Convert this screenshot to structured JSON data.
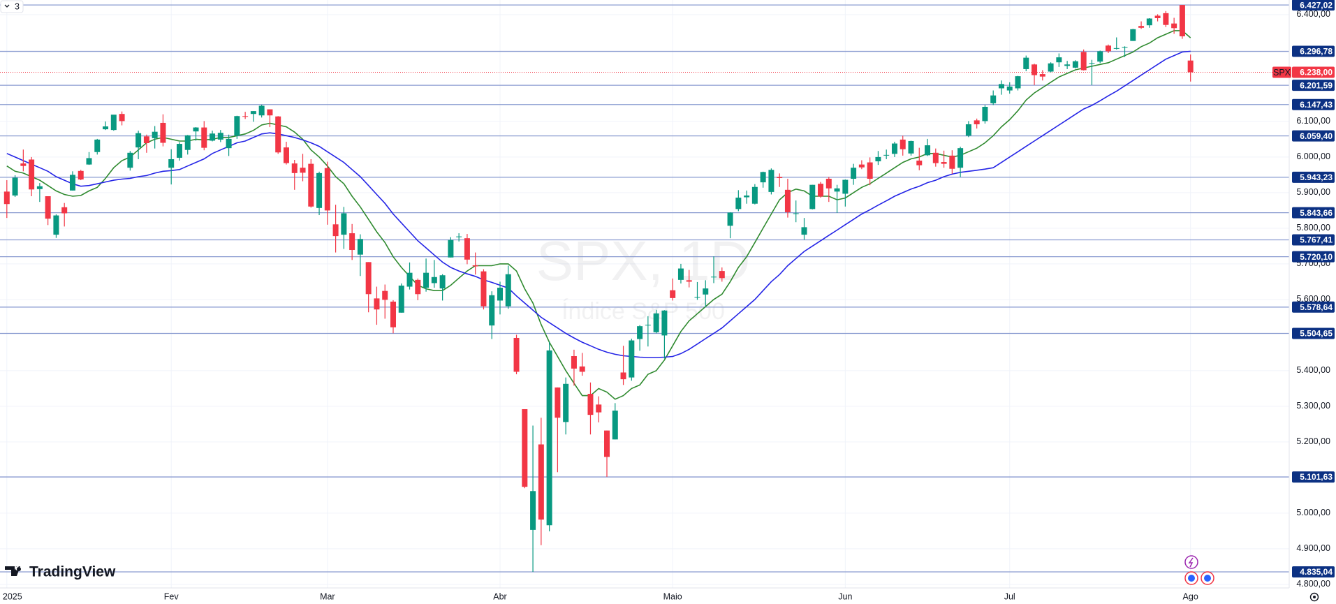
{
  "chart_data": {
    "type": "candlestick",
    "indicator_count": 3,
    "watermark_title": "SPX, 1D",
    "watermark_subtitle": "Índice S&P 500",
    "brand": "TradingView",
    "symbol": "SPX",
    "up_color": "#089981",
    "down_color": "#f23645",
    "level_color": "#8a9bd0",
    "label_color": "#0c3183",
    "grid": true,
    "ylim": [
      4790,
      6441
    ],
    "yticks": [
      {
        "value": 6400,
        "label": "6.400,00"
      },
      {
        "value": 6100,
        "label": "6.100,00"
      },
      {
        "value": 6000,
        "label": "6.000,00"
      },
      {
        "value": 5900,
        "label": "5.900,00"
      },
      {
        "value": 5800,
        "label": "5.800,00"
      },
      {
        "value": 5700,
        "label": "5.700,00"
      },
      {
        "value": 5600,
        "label": "5.600,00"
      },
      {
        "value": 5400,
        "label": "5.400,00"
      },
      {
        "value": 5300,
        "label": "5.300,00"
      },
      {
        "value": 5200,
        "label": "5.200,00"
      },
      {
        "value": 5000,
        "label": "5.000,00"
      },
      {
        "value": 4900,
        "label": "4.900,00"
      },
      {
        "value": 4800,
        "label": "4.800,00"
      }
    ],
    "levels": [
      {
        "value": 6427.02,
        "label": "6.427,02"
      },
      {
        "value": 6296.78,
        "label": "6.296,78"
      },
      {
        "value": 6201.59,
        "label": "6.201,59"
      },
      {
        "value": 6147.43,
        "label": "6.147,43"
      },
      {
        "value": 6059.4,
        "label": "6.059,40"
      },
      {
        "value": 5943.23,
        "label": "5.943,23"
      },
      {
        "value": 5843.66,
        "label": "5.843,66"
      },
      {
        "value": 5767.41,
        "label": "5.767,41"
      },
      {
        "value": 5720.1,
        "label": "5.720,10"
      },
      {
        "value": 5578.64,
        "label": "5.578,64"
      },
      {
        "value": 5504.65,
        "label": "5.504,65"
      },
      {
        "value": 5101.63,
        "label": "5.101,63"
      },
      {
        "value": 4835.04,
        "label": "4.835,04"
      }
    ],
    "last_price": {
      "value": 6238.0,
      "label": "6.238,00"
    },
    "categories": [
      "2025",
      null,
      null,
      null,
      null,
      null,
      null,
      null,
      null,
      null,
      null,
      null,
      null,
      null,
      null,
      null,
      null,
      null,
      null,
      null,
      "Fev",
      null,
      null,
      null,
      null,
      null,
      null,
      null,
      null,
      null,
      null,
      null,
      null,
      null,
      null,
      null,
      null,
      null,
      null,
      "Mar",
      null,
      null,
      null,
      null,
      null,
      null,
      null,
      null,
      null,
      null,
      null,
      null,
      null,
      null,
      null,
      null,
      null,
      null,
      null,
      null,
      "Abr",
      null,
      null,
      null,
      null,
      null,
      null,
      null,
      null,
      null,
      null,
      null,
      null,
      null,
      null,
      null,
      null,
      null,
      null,
      null,
      null,
      "Maio",
      null,
      null,
      null,
      null,
      null,
      null,
      null,
      null,
      null,
      null,
      null,
      null,
      null,
      null,
      null,
      null,
      null,
      null,
      null,
      null,
      "Jun",
      null,
      null,
      null,
      null,
      null,
      null,
      null,
      null,
      null,
      null,
      null,
      null,
      null,
      null,
      null,
      null,
      null,
      null,
      null,
      "Jul",
      null,
      null,
      null,
      null,
      null,
      null,
      null,
      null,
      null,
      null,
      null,
      null,
      null,
      null,
      null,
      null,
      null,
      null,
      null,
      null,
      null,
      "Ago"
    ],
    "ohlc": [
      [
        5903,
        5935,
        5829,
        5868
      ],
      [
        5892,
        5949,
        5888,
        5942
      ],
      [
        5982,
        6021,
        5960,
        5975
      ],
      [
        5993,
        6000,
        5890,
        5909
      ],
      [
        5910,
        5927,
        5874,
        5918
      ],
      [
        5890,
        5890,
        5809,
        5827
      ],
      [
        5782,
        5839,
        5773,
        5836
      ],
      [
        5859,
        5871,
        5805,
        5842
      ],
      [
        5906,
        5960,
        5906,
        5950
      ],
      [
        5961,
        5964,
        5935,
        5937
      ],
      [
        5979,
        6014,
        5978,
        5997
      ],
      [
        6014,
        6051,
        6007,
        6049
      ],
      [
        6078,
        6100,
        6076,
        6086
      ],
      [
        6076,
        6118,
        6074,
        6119
      ],
      [
        6121,
        6128,
        6089,
        6101
      ],
      [
        5970,
        6017,
        5962,
        6012
      ],
      [
        6027,
        6074,
        5994,
        6067
      ],
      [
        6058,
        6063,
        6012,
        6039
      ],
      [
        6053,
        6087,
        6024,
        6071
      ],
      [
        6096,
        6120,
        6030,
        6040
      ],
      [
        5970,
        6022,
        5923,
        5994
      ],
      [
        5998,
        6042,
        5990,
        6037
      ],
      [
        6020,
        6062,
        6007,
        6061
      ],
      [
        6072,
        6084,
        6046,
        6083
      ],
      [
        6083,
        6101,
        6019,
        6026
      ],
      [
        6046,
        6074,
        6044,
        6066
      ],
      [
        6049,
        6076,
        6042,
        6068
      ],
      [
        6025,
        6063,
        6003,
        6051
      ],
      [
        6060,
        6116,
        6051,
        6115
      ],
      [
        6115,
        6127,
        6107,
        6114
      ],
      [
        6121,
        6129,
        6099,
        6129
      ],
      [
        6117,
        6147,
        6111,
        6144
      ],
      [
        6134,
        6134,
        6084,
        6117
      ],
      [
        6114,
        6115,
        6009,
        6013
      ],
      [
        6027,
        6043,
        5979,
        5983
      ],
      [
        5982,
        5992,
        5908,
        5955
      ],
      [
        5970,
        6009,
        5932,
        5956
      ],
      [
        5981,
        5994,
        5858,
        5861
      ],
      [
        5857,
        5959,
        5837,
        5955
      ],
      [
        5969,
        5987,
        5810,
        5850
      ],
      [
        5811,
        5866,
        5732,
        5778
      ],
      [
        5782,
        5860,
        5742,
        5842
      ],
      [
        5786,
        5812,
        5711,
        5739
      ],
      [
        5726,
        5783,
        5666,
        5770
      ],
      [
        5705,
        5705,
        5564,
        5615
      ],
      [
        5603,
        5636,
        5529,
        5572
      ],
      [
        5624,
        5642,
        5546,
        5599
      ],
      [
        5594,
        5598,
        5505,
        5522
      ],
      [
        5563,
        5645,
        5563,
        5639
      ],
      [
        5636,
        5704,
        5628,
        5675
      ],
      [
        5655,
        5659,
        5598,
        5615
      ],
      [
        5633,
        5715,
        5622,
        5675
      ],
      [
        5646,
        5711,
        5633,
        5663
      ],
      [
        5631,
        5671,
        5597,
        5668
      ],
      [
        5718,
        5775,
        5718,
        5767
      ],
      [
        5775,
        5786,
        5763,
        5777
      ],
      [
        5772,
        5784,
        5699,
        5712
      ],
      [
        5696,
        5732,
        5670,
        5693
      ],
      [
        5679,
        5685,
        5572,
        5581
      ],
      [
        5527,
        5623,
        5489,
        5612
      ],
      [
        5597,
        5650,
        5558,
        5633
      ],
      [
        5581,
        5695,
        5574,
        5671
      ],
      [
        5492,
        5501,
        5390,
        5397
      ],
      [
        5292,
        5292,
        5070,
        5074
      ],
      [
        4953,
        5246,
        4835,
        5062
      ],
      [
        5193,
        5268,
        4910,
        4982
      ],
      [
        4966,
        5482,
        4949,
        5457
      ],
      [
        5353,
        5353,
        5115,
        5268
      ],
      [
        5256,
        5381,
        5221,
        5363
      ],
      [
        5441,
        5459,
        5358,
        5406
      ],
      [
        5412,
        5450,
        5386,
        5397
      ],
      [
        5335,
        5367,
        5221,
        5276
      ],
      [
        5305,
        5328,
        5255,
        5283
      ],
      [
        5232,
        5232,
        5102,
        5158
      ],
      [
        5207,
        5309,
        5207,
        5288
      ],
      [
        5395,
        5470,
        5360,
        5376
      ],
      [
        5381,
        5490,
        5372,
        5485
      ],
      [
        5489,
        5528,
        5456,
        5525
      ],
      [
        5529,
        5553,
        5468,
        5529
      ],
      [
        5508,
        5571,
        5505,
        5561
      ],
      [
        5499,
        5570,
        5434,
        5569
      ],
      [
        5626,
        5659,
        5597,
        5604
      ],
      [
        5655,
        5700,
        5645,
        5687
      ],
      [
        5654,
        5683,
        5634,
        5650
      ],
      [
        5607,
        5649,
        5599,
        5607
      ],
      [
        5614,
        5654,
        5579,
        5631
      ],
      [
        5663,
        5721,
        5646,
        5664
      ],
      [
        5680,
        5690,
        5650,
        5660
      ],
      [
        5807,
        5845,
        5772,
        5844
      ],
      [
        5854,
        5907,
        5848,
        5886
      ],
      [
        5887,
        5906,
        5869,
        5892
      ],
      [
        5869,
        5924,
        5867,
        5916
      ],
      [
        5929,
        5959,
        5914,
        5958
      ],
      [
        5902,
        5968,
        5895,
        5964
      ],
      [
        5944,
        5954,
        5916,
        5941
      ],
      [
        5908,
        5939,
        5830,
        5845
      ],
      [
        5841,
        5878,
        5817,
        5842
      ],
      [
        5782,
        5829,
        5768,
        5803
      ],
      [
        5854,
        5922,
        5853,
        5922
      ],
      [
        5925,
        5930,
        5886,
        5889
      ],
      [
        5939,
        5944,
        5874,
        5912
      ],
      [
        5903,
        5922,
        5843,
        5912
      ],
      [
        5897,
        5937,
        5861,
        5936
      ],
      [
        5939,
        5981,
        5922,
        5970
      ],
      [
        5979,
        5991,
        5966,
        5971
      ],
      [
        5985,
        5999,
        5921,
        5939
      ],
      [
        5988,
        6017,
        5978,
        6000
      ],
      [
        6005,
        6021,
        5994,
        6006
      ],
      [
        6009,
        6043,
        6000,
        6038
      ],
      [
        6049,
        6060,
        6004,
        6022
      ],
      [
        6010,
        6046,
        6004,
        6045
      ],
      [
        5990,
        6026,
        5963,
        5977
      ],
      [
        6005,
        6051,
        6003,
        6033
      ],
      [
        6012,
        6024,
        5973,
        5983
      ],
      [
        5986,
        6018,
        5970,
        5981
      ],
      [
        6004,
        6019,
        5953,
        5967
      ],
      [
        5970,
        6029,
        5944,
        6025
      ],
      [
        6060,
        6101,
        6056,
        6092
      ],
      [
        6103,
        6108,
        6080,
        6092
      ],
      [
        6101,
        6146,
        6094,
        6141
      ],
      [
        6151,
        6187,
        6146,
        6173
      ],
      [
        6193,
        6215,
        6175,
        6205
      ],
      [
        6187,
        6210,
        6178,
        6198
      ],
      [
        6193,
        6228,
        6187,
        6227
      ],
      [
        6247,
        6285,
        6241,
        6279
      ],
      [
        6260,
        6262,
        6202,
        6230
      ],
      [
        6233,
        6244,
        6215,
        6226
      ],
      [
        6240,
        6266,
        6238,
        6263
      ],
      [
        6266,
        6291,
        6253,
        6280
      ],
      [
        6256,
        6270,
        6247,
        6260
      ],
      [
        6251,
        6272,
        6249,
        6269
      ],
      [
        6295,
        6302,
        6243,
        6244
      ],
      [
        6262,
        6273,
        6202,
        6264
      ],
      [
        6268,
        6299,
        6264,
        6297
      ],
      [
        6313,
        6316,
        6292,
        6297
      ],
      [
        6304,
        6336,
        6302,
        6306
      ],
      [
        6307,
        6311,
        6281,
        6309
      ],
      [
        6326,
        6360,
        6326,
        6359
      ],
      [
        6368,
        6381,
        6360,
        6363
      ],
      [
        6370,
        6390,
        6363,
        6389
      ],
      [
        6397,
        6401,
        6381,
        6390
      ],
      [
        6404,
        6410,
        6365,
        6371
      ],
      [
        6375,
        6391,
        6346,
        6362
      ],
      [
        6427,
        6427,
        6332,
        6339
      ],
      [
        6271,
        6288,
        6212,
        6238
      ]
    ],
    "series": [
      {
        "color": "#2f8a2f",
        "values": [
          5975,
          5960,
          5955,
          5945,
          5935,
          5920,
          5905,
          5895,
          5890,
          5892,
          5905,
          5915,
          5940,
          5970,
          5990,
          6000,
          6020,
          6040,
          6050,
          6055,
          6050,
          6045,
          6045,
          6050,
          6048,
          6050,
          6055,
          6055,
          6060,
          6065,
          6075,
          6090,
          6095,
          6090,
          6085,
          6070,
          6050,
          6020,
          6000,
          5975,
          5945,
          5925,
          5890,
          5860,
          5825,
          5790,
          5760,
          5720,
          5690,
          5665,
          5640,
          5630,
          5625,
          5625,
          5640,
          5660,
          5680,
          5695,
          5695,
          5695,
          5700,
          5700,
          5680,
          5630,
          5590,
          5530,
          5480,
          5440,
          5400,
          5365,
          5330,
          5330,
          5350,
          5340,
          5320,
          5330,
          5350,
          5360,
          5390,
          5400,
          5430,
          5470,
          5510,
          5540,
          5560,
          5580,
          5600,
          5615,
          5650,
          5690,
          5720,
          5760,
          5800,
          5840,
          5880,
          5900,
          5910,
          5905,
          5890,
          5890,
          5890,
          5880,
          5885,
          5900,
          5915,
          5925,
          5940,
          5955,
          5970,
          5985,
          5995,
          6000,
          6010,
          6010,
          6005,
          6000,
          6005,
          6015,
          6025,
          6040,
          6060,
          6085,
          6105,
          6130,
          6160,
          6180,
          6195,
          6210,
          6225,
          6235,
          6245,
          6250,
          6255,
          6260,
          6265,
          6275,
          6285,
          6295,
          6310,
          6320,
          6335,
          6345,
          6355,
          6355,
          6335
        ]
      },
      {
        "color": "#2424e6",
        "values": [
          6010,
          6000,
          5990,
          5980,
          5970,
          5960,
          5945,
          5935,
          5925,
          5918,
          5920,
          5925,
          5930,
          5935,
          5938,
          5940,
          5945,
          5948,
          5955,
          5960,
          5962,
          5965,
          5975,
          5985,
          5995,
          6010,
          6020,
          6030,
          6040,
          6045,
          6055,
          6065,
          6068,
          6065,
          6060,
          6055,
          6048,
          6040,
          6030,
          6015,
          6000,
          5985,
          5965,
          5945,
          5920,
          5895,
          5870,
          5840,
          5815,
          5790,
          5765,
          5745,
          5725,
          5705,
          5690,
          5680,
          5672,
          5665,
          5655,
          5648,
          5640,
          5632,
          5610,
          5590,
          5570,
          5550,
          5535,
          5520,
          5505,
          5492,
          5480,
          5470,
          5460,
          5452,
          5446,
          5442,
          5440,
          5438,
          5437,
          5437,
          5438,
          5440,
          5448,
          5460,
          5475,
          5490,
          5505,
          5520,
          5540,
          5560,
          5580,
          5600,
          5625,
          5650,
          5670,
          5695,
          5715,
          5735,
          5750,
          5765,
          5780,
          5795,
          5810,
          5825,
          5840,
          5852,
          5865,
          5877,
          5890,
          5900,
          5910,
          5918,
          5928,
          5935,
          5945,
          5952,
          5957,
          5960,
          5963,
          5966,
          5970,
          5985,
          6000,
          6015,
          6030,
          6045,
          6060,
          6075,
          6090,
          6105,
          6120,
          6135,
          6145,
          6158,
          6172,
          6185,
          6200,
          6215,
          6230,
          6245,
          6260,
          6275,
          6285,
          6295,
          6297
        ]
      }
    ]
  }
}
